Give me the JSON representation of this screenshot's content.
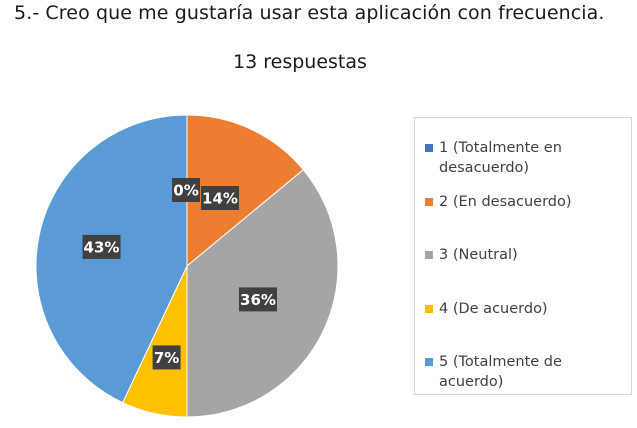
{
  "question": "5.- Creo que me gustaría usar esta aplicación con frecuencia.",
  "responses": "13 respuestas",
  "chart_data": {
    "type": "pie",
    "categories": [
      "1 (Totalmente en desacuerdo)",
      "2 (En desacuerdo)",
      "3 (Neutral)",
      "4 (De acuerdo)",
      "5 (Totalmente de acuerdo)"
    ],
    "values": [
      0,
      14,
      36,
      7,
      43
    ],
    "data_labels": [
      "0%",
      "14%",
      "36%",
      "7%",
      "43%"
    ],
    "colors": [
      "#4472c4",
      "#ed7d31",
      "#a5a5a5",
      "#ffc000",
      "#5b9bd5"
    ],
    "legend": "right"
  },
  "legend": {
    "items": [
      {
        "line1": "1 (Totalmente en",
        "line2": "desacuerdo)"
      },
      {
        "line1": "2 (En desacuerdo)"
      },
      {
        "line1": "3 (Neutral)"
      },
      {
        "line1": "4 (De acuerdo)"
      },
      {
        "line1": "5 (Totalmente de acuerdo)"
      }
    ]
  }
}
